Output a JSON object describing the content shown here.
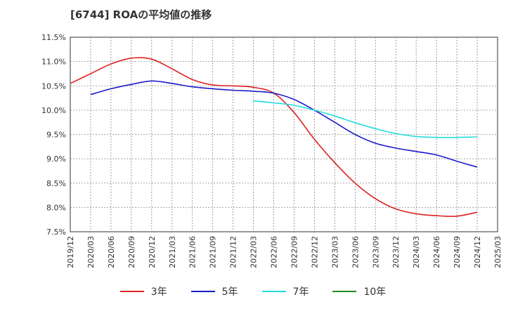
{
  "chart_data": {
    "type": "line",
    "title": "[6744]  ROAの平均値の推移",
    "xlabel": "",
    "ylabel": "",
    "ylim": [
      7.5,
      11.5
    ],
    "y_ticks": [
      "7.5%",
      "8.0%",
      "8.5%",
      "9.0%",
      "9.5%",
      "10.0%",
      "10.5%",
      "11.0%",
      "11.5%"
    ],
    "x_ticks": [
      "2019/12",
      "2020/03",
      "2020/06",
      "2020/09",
      "2020/12",
      "2021/03",
      "2021/06",
      "2021/09",
      "2021/12",
      "2022/03",
      "2022/06",
      "2022/09",
      "2022/12",
      "2023/03",
      "2023/06",
      "2023/09",
      "2023/12",
      "2024/03",
      "2024/06",
      "2024/09",
      "2024/12",
      "2025/03"
    ],
    "grid": true,
    "legend_position": "bottom",
    "series": [
      {
        "name": "3年",
        "color": "#dd2222",
        "values": [
          10.55,
          10.75,
          10.95,
          11.07,
          11.05,
          10.85,
          10.63,
          10.52,
          10.5,
          10.47,
          10.35,
          9.95,
          9.4,
          8.92,
          8.5,
          8.18,
          7.97,
          7.87,
          7.83,
          7.82,
          7.9,
          null
        ]
      },
      {
        "name": "5年",
        "color": "#1a1acc",
        "values": [
          null,
          10.32,
          10.44,
          10.53,
          10.6,
          10.55,
          10.48,
          10.44,
          10.41,
          10.39,
          10.35,
          10.22,
          10.0,
          9.75,
          9.5,
          9.32,
          9.22,
          9.15,
          9.08,
          8.95,
          8.83,
          null
        ]
      },
      {
        "name": "7年",
        "color": "#22dddd",
        "values": [
          null,
          null,
          null,
          null,
          null,
          null,
          null,
          null,
          null,
          10.19,
          10.15,
          10.1,
          10.0,
          9.88,
          9.74,
          9.62,
          9.52,
          9.46,
          9.44,
          9.44,
          9.45,
          null
        ]
      },
      {
        "name": "10年",
        "color": "#228822",
        "values": []
      }
    ]
  }
}
